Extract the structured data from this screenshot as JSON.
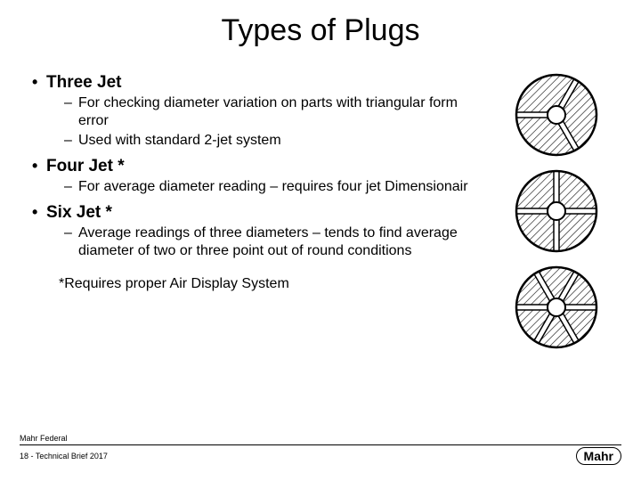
{
  "title": "Types of Plugs",
  "sections": [
    {
      "heading": "Three Jet",
      "subs": [
        "For checking diameter variation on parts with triangular form error",
        "Used with standard 2-jet system"
      ]
    },
    {
      "heading": "Four Jet *",
      "subs": [
        "For average diameter reading – requires four jet Dimensionair"
      ]
    },
    {
      "heading": "Six Jet *",
      "subs": [
        "Average readings of three diameters – tends to find average diameter of two or three point out of round conditions"
      ]
    }
  ],
  "footnote": "*Requires proper Air Display System",
  "footer": {
    "company": "Mahr Federal",
    "page": "18 -  Technical Brief 2017",
    "brand": "Mahr"
  },
  "diagrams": [
    {
      "type": "plug-circle",
      "spokes": 3,
      "outer_r": 45,
      "inner_r": 10,
      "size": 100,
      "stroke": "#000000",
      "hatch_color": "#000000"
    },
    {
      "type": "plug-circle",
      "spokes": 4,
      "outer_r": 45,
      "inner_r": 10,
      "size": 100,
      "stroke": "#000000",
      "hatch_color": "#000000"
    },
    {
      "type": "plug-circle",
      "spokes": 6,
      "outer_r": 45,
      "inner_r": 10,
      "size": 100,
      "stroke": "#000000",
      "hatch_color": "#000000"
    }
  ],
  "colors": {
    "bg": "#ffffff",
    "text": "#000000"
  }
}
